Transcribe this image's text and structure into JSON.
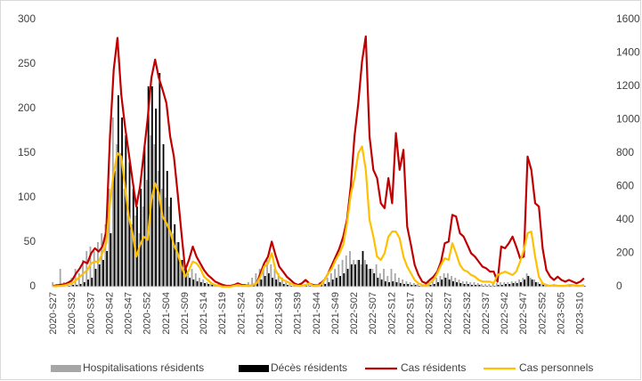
{
  "chart_data": {
    "type": "combo",
    "categories": [
      "2020-S27",
      null,
      null,
      null,
      null,
      "2020-S32",
      null,
      null,
      null,
      null,
      "2020-S37",
      null,
      null,
      null,
      null,
      "2020-S42",
      null,
      null,
      null,
      null,
      "2020-S47",
      null,
      null,
      null,
      null,
      "2020-S52",
      null,
      null,
      null,
      null,
      "2021-S04",
      null,
      null,
      null,
      null,
      "2021-S09",
      null,
      null,
      null,
      null,
      "2021-S14",
      null,
      null,
      null,
      null,
      "2021-S19",
      null,
      null,
      null,
      null,
      "2021-S24",
      null,
      null,
      null,
      null,
      "2021-S29",
      null,
      null,
      null,
      null,
      "2021-S34",
      null,
      null,
      null,
      null,
      "2021-S39",
      null,
      null,
      null,
      null,
      "2021-S44",
      null,
      null,
      null,
      null,
      "2021-S49",
      null,
      null,
      null,
      null,
      "2022-S02",
      null,
      null,
      null,
      null,
      "2022-S07",
      null,
      null,
      null,
      null,
      "2022-S12",
      null,
      null,
      null,
      null,
      "2022-S17",
      null,
      null,
      null,
      null,
      "2022-S22",
      null,
      null,
      null,
      null,
      "2022-S27",
      null,
      null,
      null,
      null,
      "2022-S32",
      null,
      null,
      null,
      null,
      "2022-S37",
      null,
      null,
      null,
      null,
      "2022-S42",
      null,
      null,
      null,
      null,
      "2022-S47",
      null,
      null,
      null,
      null,
      "2022-S52",
      null,
      null,
      null,
      null,
      "2023-S05",
      null,
      null,
      null,
      null,
      "2023-S10",
      null
    ],
    "series": [
      {
        "name": "Hospitalisations résidents",
        "type": "bar",
        "color": "#a6a6a6",
        "values": [
          5,
          3,
          20,
          5,
          5,
          10,
          20,
          15,
          30,
          40,
          45,
          40,
          50,
          60,
          70,
          110,
          190,
          160,
          150,
          110,
          80,
          70,
          80,
          60,
          90,
          120,
          170,
          160,
          130,
          110,
          100,
          90,
          60,
          50,
          30,
          20,
          15,
          20,
          15,
          10,
          8,
          5,
          5,
          3,
          3,
          2,
          2,
          2,
          2,
          3,
          3,
          3,
          5,
          10,
          15,
          20,
          25,
          30,
          25,
          20,
          15,
          10,
          5,
          5,
          3,
          3,
          3,
          3,
          3,
          3,
          3,
          5,
          8,
          10,
          15,
          20,
          25,
          30,
          35,
          40,
          30,
          30,
          25,
          30,
          20,
          20,
          25,
          15,
          20,
          12,
          20,
          15,
          10,
          8,
          6,
          5,
          4,
          3,
          3,
          3,
          5,
          8,
          10,
          12,
          15,
          15,
          12,
          10,
          8,
          6,
          6,
          5,
          5,
          4,
          3,
          3,
          3,
          3,
          4,
          5,
          5,
          5,
          6,
          6,
          8,
          10,
          15,
          10,
          8,
          5,
          4,
          3,
          2,
          2,
          2,
          2,
          2,
          2,
          2,
          2,
          2,
          2
        ]
      },
      {
        "name": "Décès résidents",
        "type": "bar",
        "color": "#000000",
        "values": [
          0,
          0,
          0,
          0,
          1,
          2,
          2,
          3,
          5,
          8,
          10,
          20,
          25,
          30,
          40,
          60,
          130,
          215,
          190,
          170,
          140,
          110,
          90,
          110,
          160,
          225,
          225,
          200,
          240,
          160,
          130,
          100,
          70,
          50,
          30,
          20,
          10,
          8,
          6,
          5,
          4,
          3,
          2,
          2,
          1,
          1,
          1,
          0,
          1,
          1,
          1,
          1,
          2,
          3,
          5,
          8,
          12,
          15,
          10,
          8,
          5,
          3,
          2,
          1,
          1,
          1,
          1,
          1,
          1,
          1,
          1,
          2,
          3,
          5,
          8,
          10,
          12,
          15,
          20,
          25,
          25,
          30,
          40,
          25,
          20,
          15,
          10,
          8,
          6,
          5,
          6,
          5,
          4,
          3,
          3,
          2,
          2,
          1,
          1,
          1,
          2,
          3,
          5,
          8,
          10,
          8,
          6,
          5,
          4,
          3,
          3,
          2,
          2,
          2,
          1,
          1,
          1,
          1,
          2,
          2,
          3,
          3,
          4,
          4,
          5,
          8,
          12,
          8,
          5,
          3,
          2,
          2,
          1,
          1,
          1,
          1,
          1,
          1,
          0,
          0,
          0,
          1
        ]
      },
      {
        "name": "Cas résidents",
        "type": "line",
        "axis": "y2",
        "color": "#c00000",
        "values": [
          5,
          8,
          12,
          15,
          25,
          40,
          80,
          110,
          150,
          140,
          200,
          230,
          210,
          240,
          330,
          900,
          1300,
          1490,
          1150,
          960,
          800,
          640,
          480,
          600,
          800,
          1000,
          1250,
          1360,
          1250,
          1180,
          1100,
          900,
          780,
          560,
          320,
          100,
          160,
          240,
          180,
          140,
          100,
          70,
          50,
          30,
          20,
          10,
          5,
          5,
          10,
          20,
          10,
          8,
          5,
          10,
          20,
          80,
          140,
          180,
          270,
          190,
          120,
          90,
          60,
          40,
          20,
          10,
          20,
          40,
          20,
          10,
          5,
          20,
          40,
          80,
          130,
          180,
          230,
          300,
          400,
          600,
          900,
          1100,
          1350,
          1500,
          900,
          700,
          650,
          500,
          470,
          650,
          500,
          920,
          700,
          820,
          360,
          250,
          130,
          70,
          30,
          20,
          40,
          60,
          90,
          150,
          260,
          270,
          430,
          420,
          320,
          300,
          250,
          200,
          180,
          150,
          120,
          110,
          90,
          90,
          30,
          240,
          230,
          260,
          300,
          240,
          170,
          180,
          780,
          700,
          500,
          480,
          230,
          100,
          60,
          40,
          60,
          40,
          30,
          40,
          30,
          20,
          30,
          50
        ]
      },
      {
        "name": "Cas personnels",
        "type": "line",
        "axis": "y2",
        "color": "#ffc000",
        "values": [
          2,
          3,
          5,
          8,
          15,
          20,
          40,
          60,
          80,
          100,
          140,
          150,
          150,
          200,
          260,
          500,
          680,
          800,
          780,
          600,
          420,
          320,
          180,
          250,
          300,
          280,
          520,
          620,
          560,
          420,
          380,
          330,
          250,
          200,
          120,
          60,
          100,
          150,
          140,
          110,
          60,
          40,
          20,
          10,
          5,
          0,
          0,
          0,
          5,
          10,
          5,
          5,
          5,
          10,
          20,
          60,
          120,
          140,
          200,
          100,
          60,
          40,
          30,
          20,
          10,
          5,
          5,
          10,
          20,
          5,
          5,
          10,
          40,
          80,
          110,
          160,
          200,
          250,
          380,
          550,
          650,
          800,
          840,
          700,
          400,
          300,
          180,
          160,
          200,
          300,
          330,
          330,
          290,
          180,
          120,
          80,
          40,
          20,
          10,
          5,
          20,
          40,
          80,
          130,
          170,
          160,
          260,
          200,
          130,
          100,
          90,
          70,
          60,
          40,
          30,
          30,
          30,
          20,
          70,
          80,
          90,
          80,
          70,
          90,
          150,
          220,
          320,
          330,
          180,
          60,
          20,
          10,
          5,
          10,
          5,
          5,
          5,
          10,
          10,
          5,
          5,
          10
        ]
      }
    ],
    "ylim": [
      0,
      300
    ],
    "yticks": [
      0,
      50,
      100,
      150,
      200,
      250,
      300
    ],
    "y2lim": [
      0,
      1600
    ],
    "y2ticks": [
      0,
      200,
      400,
      600,
      800,
      1000,
      1200,
      1400,
      1600
    ],
    "legend": "bottom"
  }
}
